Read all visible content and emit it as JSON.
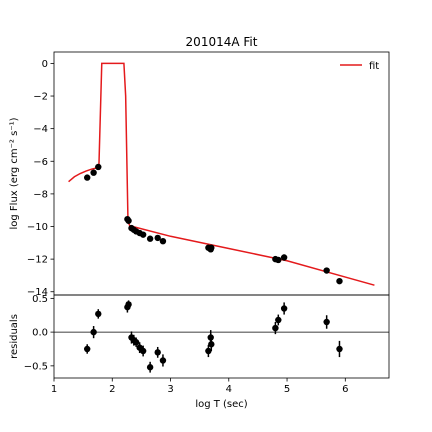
{
  "chart_data": [
    {
      "type": "line",
      "panel": "main",
      "title": "201014A Fit",
      "xlabel": "",
      "ylabel": "log Flux (erg cm⁻² s⁻¹)",
      "xlim": [
        1.0,
        6.75
      ],
      "ylim": [
        -14.2,
        0.7
      ],
      "yticks": [
        0,
        -2,
        -4,
        -6,
        -8,
        -10,
        -12,
        -14
      ],
      "yticklabels": [
        "0",
        "−2",
        "−4",
        "−6",
        "−8",
        "−10",
        "−12",
        "−14"
      ],
      "grid": false,
      "legend": {
        "position": "top-right",
        "entries": [
          "fit"
        ]
      },
      "series": [
        {
          "name": "fit",
          "kind": "line",
          "color": "#e41a1c",
          "x": [
            1.25,
            1.35,
            1.45,
            1.55,
            1.65,
            1.72,
            1.77,
            1.82,
            2.18,
            2.2,
            2.23,
            2.27,
            2.3,
            2.35,
            3.0,
            4.0,
            5.0,
            6.0,
            6.5
          ],
          "y": [
            -7.25,
            -6.95,
            -6.75,
            -6.6,
            -6.48,
            -6.42,
            -6.4,
            0.0,
            0.0,
            0.0,
            -2.0,
            -9.7,
            -9.95,
            -10.0,
            -10.6,
            -11.35,
            -12.1,
            -13.1,
            -13.6
          ]
        },
        {
          "name": "",
          "kind": "scatter",
          "color": "#000000",
          "x": [
            1.57,
            1.68,
            1.76,
            2.26,
            2.28,
            2.33,
            2.37,
            2.41,
            2.47,
            2.53,
            2.65,
            2.78,
            2.87,
            3.65,
            3.69,
            3.7,
            4.8,
            4.85,
            4.95,
            5.68,
            5.9
          ],
          "y": [
            -7.0,
            -6.7,
            -6.35,
            -9.55,
            -9.65,
            -10.1,
            -10.2,
            -10.3,
            -10.4,
            -10.5,
            -10.75,
            -10.7,
            -10.9,
            -11.3,
            -11.4,
            -11.3,
            -12.0,
            -12.05,
            -11.9,
            -12.7,
            -13.35
          ]
        }
      ]
    },
    {
      "type": "scatter",
      "panel": "residuals",
      "title": "",
      "xlabel": "log T (sec)",
      "ylabel": "residuals",
      "xlim": [
        1.0,
        6.75
      ],
      "ylim": [
        -0.68,
        0.55
      ],
      "xticks": [
        1,
        2,
        3,
        4,
        5,
        6
      ],
      "xticklabels": [
        "1",
        "2",
        "3",
        "4",
        "5",
        "6"
      ],
      "yticks": [
        0.5,
        0.0,
        -0.5
      ],
      "yticklabels": [
        "0.5",
        "0.0",
        "−0.5"
      ],
      "zero_line": true,
      "grid": false,
      "series": [
        {
          "name": "",
          "color": "#000000",
          "x": [
            1.57,
            1.68,
            1.76,
            2.26,
            2.28,
            2.33,
            2.37,
            2.41,
            2.47,
            2.53,
            2.65,
            2.78,
            2.87,
            3.65,
            3.69,
            3.7,
            4.8,
            4.85,
            4.95,
            5.68,
            5.9
          ],
          "y": [
            -0.25,
            0.0,
            0.27,
            0.37,
            0.41,
            -0.08,
            -0.12,
            -0.15,
            -0.23,
            -0.28,
            -0.52,
            -0.3,
            -0.42,
            -0.28,
            -0.08,
            -0.18,
            0.06,
            0.18,
            0.35,
            0.15,
            -0.25
          ],
          "yerr": [
            0.07,
            0.09,
            0.07,
            0.08,
            0.06,
            0.09,
            0.08,
            0.07,
            0.08,
            0.08,
            0.08,
            0.08,
            0.09,
            0.09,
            0.11,
            0.1,
            0.09,
            0.08,
            0.09,
            0.1,
            0.12
          ]
        }
      ]
    }
  ]
}
